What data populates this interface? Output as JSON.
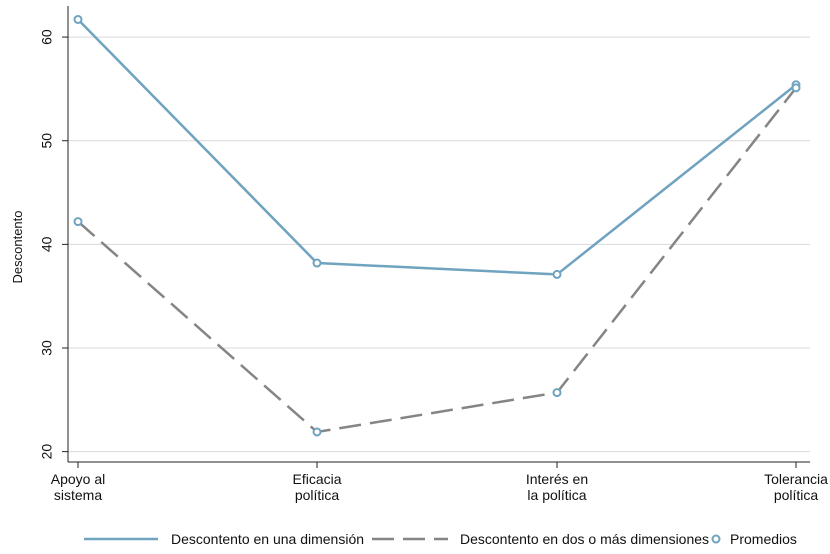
{
  "chart_data": {
    "type": "line",
    "title": "",
    "xlabel": "",
    "ylabel": "Descontento",
    "categories": [
      [
        "Apoyo al",
        "sistema"
      ],
      [
        "Eficacia",
        "política"
      ],
      [
        "Interés en",
        "la política"
      ],
      [
        "Tolerancia",
        "política"
      ]
    ],
    "ylim": [
      19,
      63
    ],
    "yticks": [
      20,
      30,
      40,
      50,
      60
    ],
    "grid": true,
    "legend_position": "bottom",
    "series": [
      {
        "name": "Descontento en una dimensión",
        "values": [
          61.7,
          38.2,
          37.1,
          55.4
        ],
        "color": "#6fa3bf",
        "dash": "solid"
      },
      {
        "name": "Descontento en dos o más dimensiones",
        "values": [
          42.2,
          21.9,
          25.7,
          55.1
        ],
        "color": "#858585",
        "dash": "dashed"
      }
    ],
    "markers_legend": "Promedios",
    "marker_color": "#6fa3bf"
  }
}
